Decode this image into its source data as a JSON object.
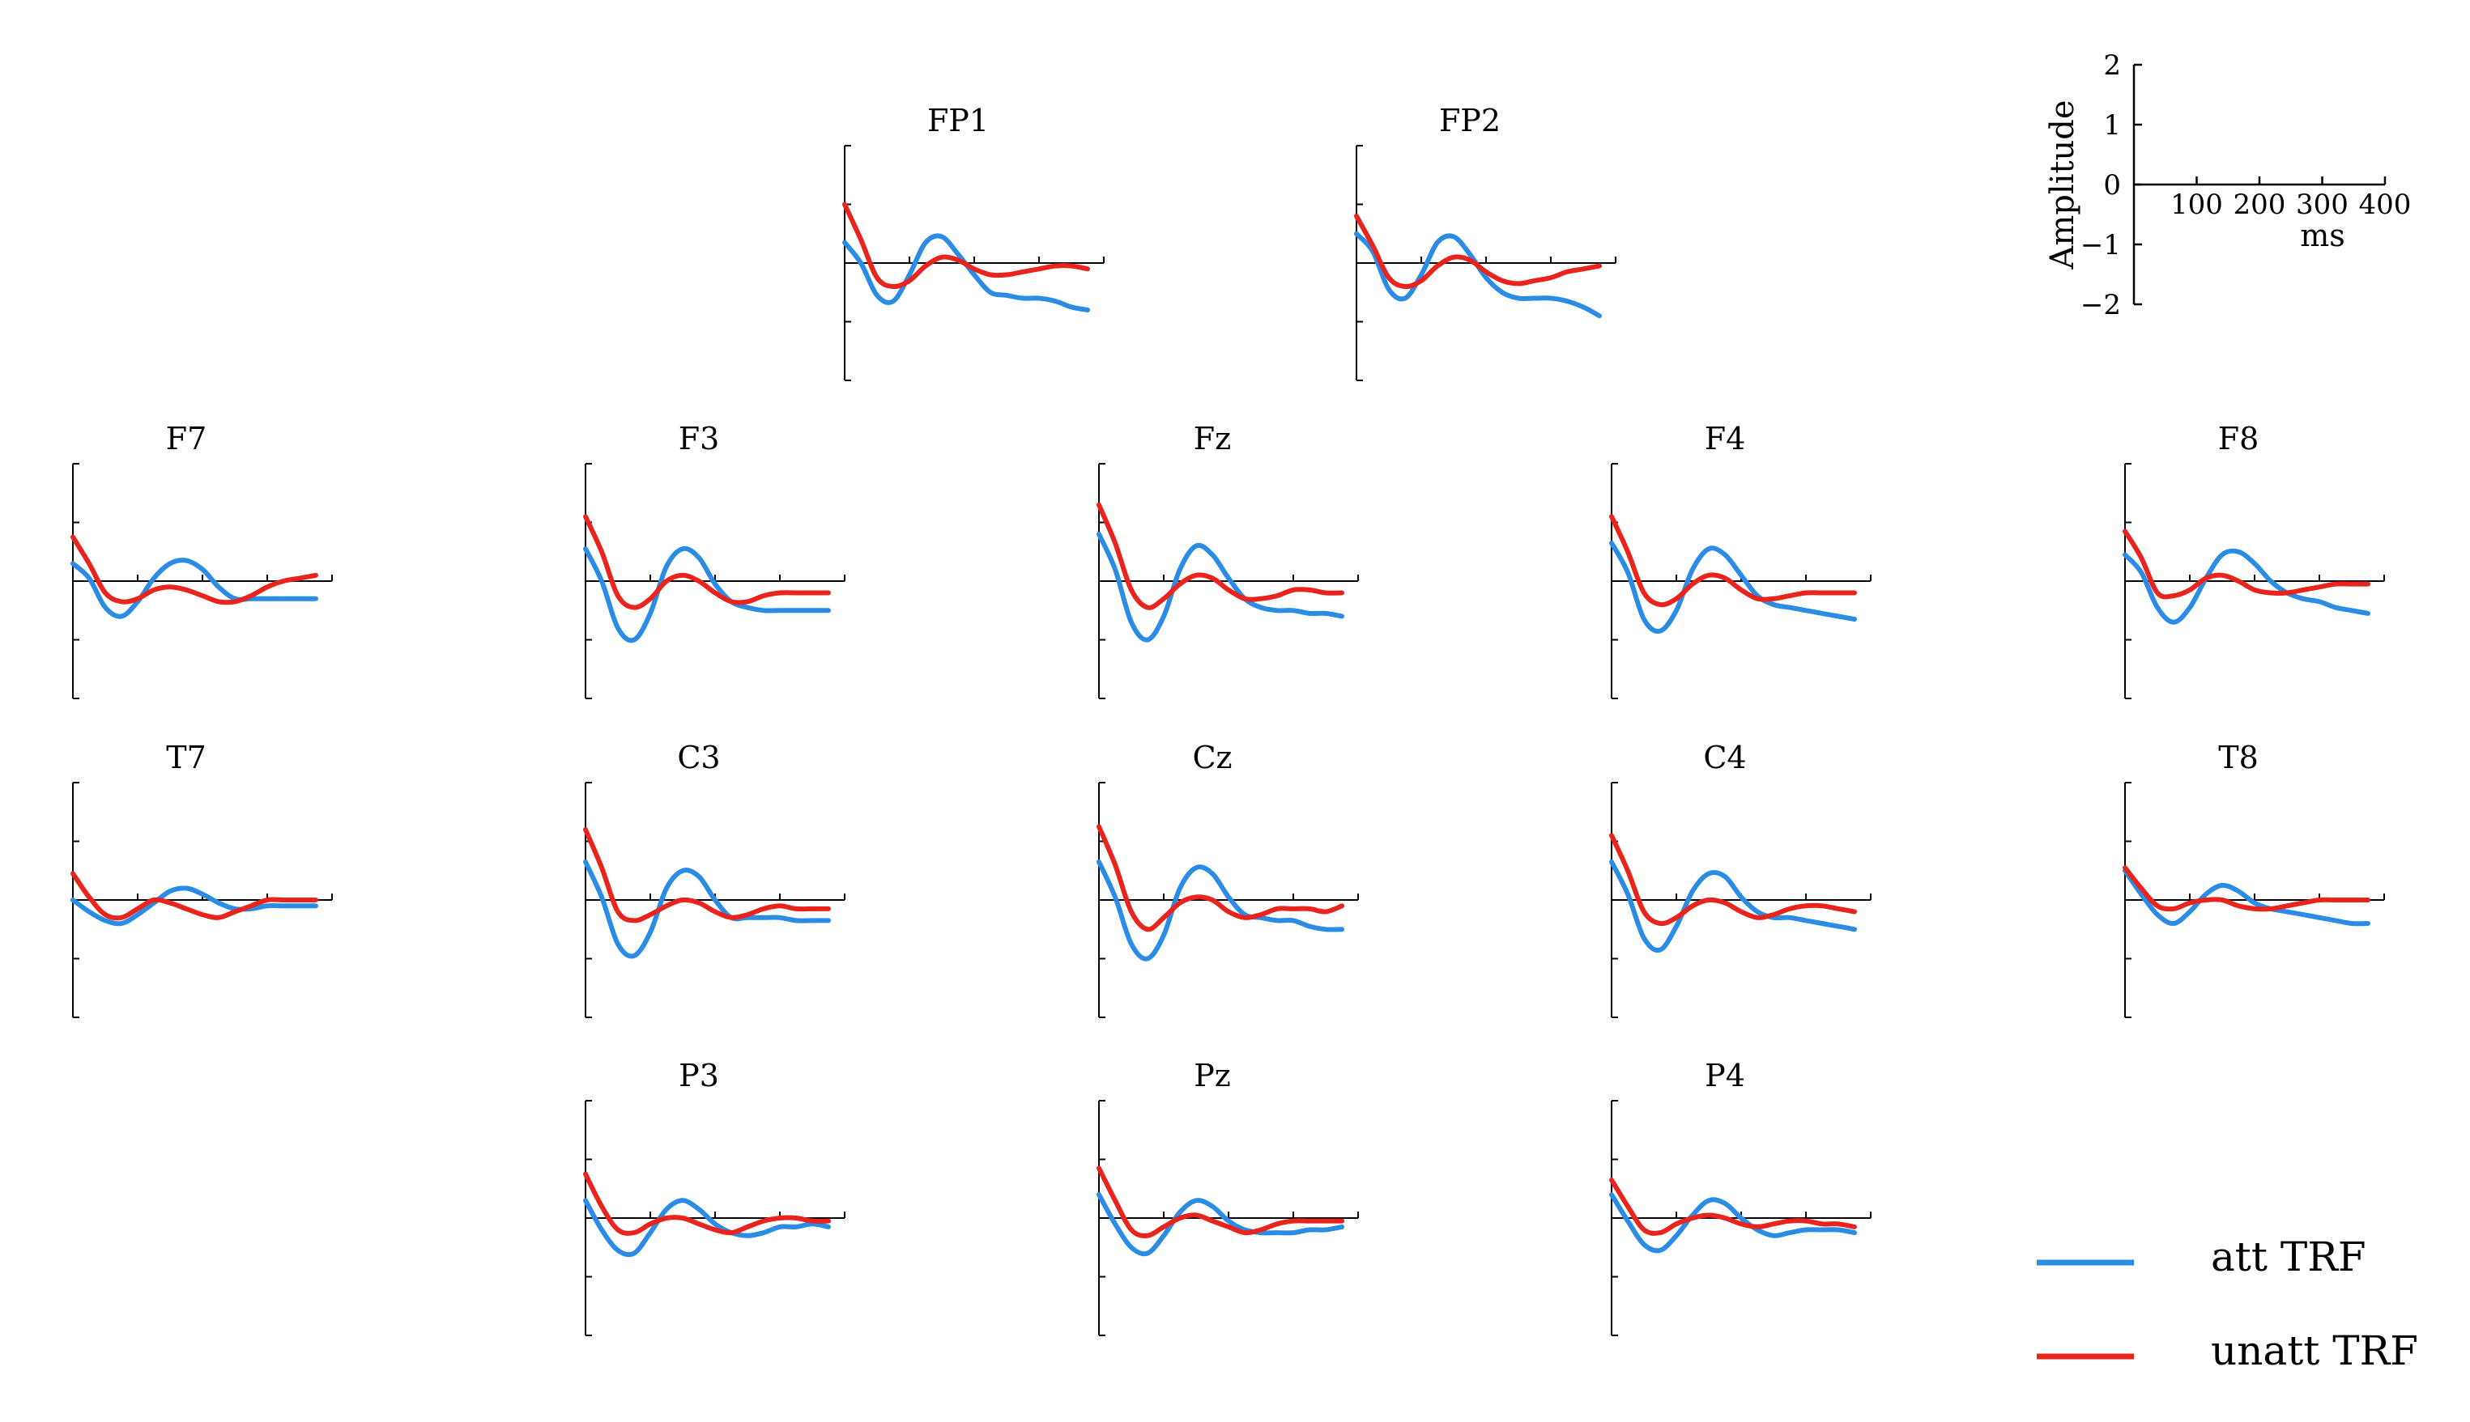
{
  "chart_data": {
    "type": "line",
    "description_scale": {
      "ylabel": "Amplitude",
      "xlabel": "ms",
      "y_ticks": [
        2,
        1,
        0,
        -1,
        -2
      ],
      "x_ticks": [
        100,
        200,
        300,
        400
      ],
      "ylim": [
        -2,
        2
      ],
      "xlim": [
        0,
        400
      ]
    },
    "legend": [
      {
        "name": "att TRF",
        "color": "#2b8ce6"
      },
      {
        "name": "unatt TRF",
        "color": "#e8241c"
      }
    ],
    "x_ms": [
      0,
      25,
      50,
      75,
      100,
      125,
      150,
      175,
      200,
      225,
      250,
      275,
      300,
      325,
      350,
      375
    ],
    "panels": [
      {
        "name": "FP1",
        "att": [
          0.35,
          0.0,
          -0.55,
          -0.65,
          -0.2,
          0.35,
          0.45,
          0.15,
          -0.2,
          -0.5,
          -0.55,
          -0.6,
          -0.6,
          -0.65,
          -0.75,
          -0.8
        ],
        "unatt": [
          1.0,
          0.4,
          -0.25,
          -0.4,
          -0.3,
          -0.05,
          0.1,
          0.05,
          -0.1,
          -0.2,
          -0.2,
          -0.15,
          -0.1,
          -0.05,
          -0.05,
          -0.1
        ]
      },
      {
        "name": "FP2",
        "att": [
          0.5,
          0.2,
          -0.45,
          -0.6,
          -0.2,
          0.35,
          0.45,
          0.15,
          -0.25,
          -0.5,
          -0.6,
          -0.6,
          -0.6,
          -0.65,
          -0.75,
          -0.9
        ],
        "unatt": [
          0.8,
          0.3,
          -0.25,
          -0.4,
          -0.3,
          -0.05,
          0.1,
          0.05,
          -0.15,
          -0.3,
          -0.35,
          -0.3,
          -0.25,
          -0.15,
          -0.1,
          -0.05
        ]
      },
      {
        "name": "F7",
        "att": [
          0.3,
          0.05,
          -0.45,
          -0.6,
          -0.35,
          0.05,
          0.3,
          0.35,
          0.2,
          -0.1,
          -0.3,
          -0.3,
          -0.3,
          -0.3,
          -0.3,
          -0.3
        ],
        "unatt": [
          0.75,
          0.3,
          -0.2,
          -0.35,
          -0.3,
          -0.15,
          -0.1,
          -0.15,
          -0.25,
          -0.35,
          -0.35,
          -0.25,
          -0.1,
          0.0,
          0.05,
          0.1
        ]
      },
      {
        "name": "F3",
        "att": [
          0.55,
          0.0,
          -0.8,
          -1.0,
          -0.55,
          0.25,
          0.55,
          0.4,
          -0.05,
          -0.35,
          -0.45,
          -0.5,
          -0.5,
          -0.5,
          -0.5,
          -0.5
        ],
        "unatt": [
          1.1,
          0.5,
          -0.25,
          -0.45,
          -0.3,
          0.0,
          0.1,
          0.0,
          -0.2,
          -0.35,
          -0.35,
          -0.25,
          -0.2,
          -0.2,
          -0.2,
          -0.2
        ]
      },
      {
        "name": "Fz",
        "att": [
          0.8,
          0.2,
          -0.7,
          -1.0,
          -0.6,
          0.2,
          0.6,
          0.45,
          0.05,
          -0.3,
          -0.45,
          -0.5,
          -0.5,
          -0.55,
          -0.55,
          -0.6
        ],
        "unatt": [
          1.3,
          0.65,
          -0.15,
          -0.45,
          -0.3,
          -0.05,
          0.1,
          0.05,
          -0.15,
          -0.3,
          -0.3,
          -0.25,
          -0.15,
          -0.15,
          -0.2,
          -0.2
        ]
      },
      {
        "name": "F4",
        "att": [
          0.65,
          0.15,
          -0.65,
          -0.85,
          -0.5,
          0.2,
          0.55,
          0.45,
          0.1,
          -0.25,
          -0.4,
          -0.45,
          -0.5,
          -0.55,
          -0.6,
          -0.65
        ],
        "unatt": [
          1.1,
          0.5,
          -0.2,
          -0.4,
          -0.3,
          -0.05,
          0.1,
          0.05,
          -0.15,
          -0.3,
          -0.3,
          -0.25,
          -0.2,
          -0.2,
          -0.2,
          -0.2
        ]
      },
      {
        "name": "F8",
        "att": [
          0.45,
          0.15,
          -0.45,
          -0.7,
          -0.45,
          0.05,
          0.45,
          0.5,
          0.3,
          0.0,
          -0.2,
          -0.3,
          -0.35,
          -0.45,
          -0.5,
          -0.55
        ],
        "unatt": [
          0.85,
          0.4,
          -0.2,
          -0.25,
          -0.15,
          0.05,
          0.1,
          0.0,
          -0.15,
          -0.2,
          -0.2,
          -0.15,
          -0.1,
          -0.05,
          -0.05,
          -0.05
        ]
      },
      {
        "name": "T7",
        "att": [
          0.0,
          -0.2,
          -0.35,
          -0.4,
          -0.25,
          -0.05,
          0.15,
          0.2,
          0.1,
          -0.05,
          -0.15,
          -0.15,
          -0.1,
          -0.1,
          -0.1,
          -0.1
        ],
        "unatt": [
          0.45,
          0.05,
          -0.25,
          -0.3,
          -0.15,
          0.0,
          -0.05,
          -0.15,
          -0.25,
          -0.3,
          -0.2,
          -0.1,
          0.0,
          0.0,
          0.0,
          0.0
        ]
      },
      {
        "name": "C3",
        "att": [
          0.65,
          0.05,
          -0.75,
          -0.95,
          -0.55,
          0.2,
          0.5,
          0.4,
          0.0,
          -0.3,
          -0.3,
          -0.3,
          -0.3,
          -0.35,
          -0.35,
          -0.35
        ],
        "unatt": [
          1.2,
          0.55,
          -0.2,
          -0.35,
          -0.25,
          -0.1,
          0.0,
          -0.05,
          -0.2,
          -0.3,
          -0.25,
          -0.15,
          -0.1,
          -0.15,
          -0.15,
          -0.15
        ]
      },
      {
        "name": "Cz",
        "att": [
          0.65,
          0.05,
          -0.75,
          -1.0,
          -0.6,
          0.2,
          0.55,
          0.45,
          0.05,
          -0.25,
          -0.3,
          -0.35,
          -0.35,
          -0.45,
          -0.5,
          -0.5
        ],
        "unatt": [
          1.25,
          0.6,
          -0.2,
          -0.5,
          -0.3,
          -0.05,
          0.05,
          0.0,
          -0.2,
          -0.3,
          -0.25,
          -0.15,
          -0.15,
          -0.15,
          -0.2,
          -0.1
        ]
      },
      {
        "name": "C4",
        "att": [
          0.65,
          0.1,
          -0.65,
          -0.85,
          -0.45,
          0.15,
          0.45,
          0.4,
          0.05,
          -0.2,
          -0.3,
          -0.3,
          -0.35,
          -0.4,
          -0.45,
          -0.5
        ],
        "unatt": [
          1.1,
          0.5,
          -0.2,
          -0.4,
          -0.3,
          -0.1,
          0.0,
          -0.05,
          -0.2,
          -0.3,
          -0.25,
          -0.15,
          -0.1,
          -0.1,
          -0.15,
          -0.2
        ]
      },
      {
        "name": "T8",
        "att": [
          0.5,
          0.1,
          -0.25,
          -0.4,
          -0.2,
          0.1,
          0.25,
          0.15,
          -0.05,
          -0.15,
          -0.2,
          -0.25,
          -0.3,
          -0.35,
          -0.4,
          -0.4
        ],
        "unatt": [
          0.55,
          0.2,
          -0.1,
          -0.15,
          -0.05,
          0.0,
          0.0,
          -0.1,
          -0.15,
          -0.15,
          -0.1,
          -0.05,
          0.0,
          0.0,
          0.0,
          0.0
        ]
      },
      {
        "name": "P3",
        "att": [
          0.3,
          -0.2,
          -0.55,
          -0.6,
          -0.25,
          0.15,
          0.3,
          0.15,
          -0.1,
          -0.25,
          -0.3,
          -0.25,
          -0.15,
          -0.15,
          -0.1,
          -0.15
        ],
        "unatt": [
          0.75,
          0.2,
          -0.2,
          -0.25,
          -0.1,
          0.0,
          0.0,
          -0.1,
          -0.2,
          -0.25,
          -0.15,
          -0.05,
          0.0,
          0.0,
          -0.05,
          -0.05
        ]
      },
      {
        "name": "Pz",
        "att": [
          0.4,
          -0.1,
          -0.5,
          -0.6,
          -0.3,
          0.1,
          0.3,
          0.2,
          -0.05,
          -0.2,
          -0.25,
          -0.25,
          -0.25,
          -0.2,
          -0.2,
          -0.15
        ],
        "unatt": [
          0.85,
          0.3,
          -0.2,
          -0.3,
          -0.15,
          0.0,
          0.05,
          -0.05,
          -0.15,
          -0.25,
          -0.2,
          -0.1,
          -0.05,
          -0.05,
          -0.05,
          -0.05
        ]
      },
      {
        "name": "P4",
        "att": [
          0.4,
          -0.05,
          -0.45,
          -0.55,
          -0.3,
          0.05,
          0.3,
          0.25,
          0.0,
          -0.2,
          -0.3,
          -0.25,
          -0.2,
          -0.2,
          -0.2,
          -0.25
        ],
        "unatt": [
          0.65,
          0.2,
          -0.2,
          -0.25,
          -0.1,
          0.0,
          0.05,
          0.0,
          -0.1,
          -0.15,
          -0.1,
          -0.05,
          -0.05,
          -0.1,
          -0.1,
          -0.15
        ]
      }
    ]
  }
}
